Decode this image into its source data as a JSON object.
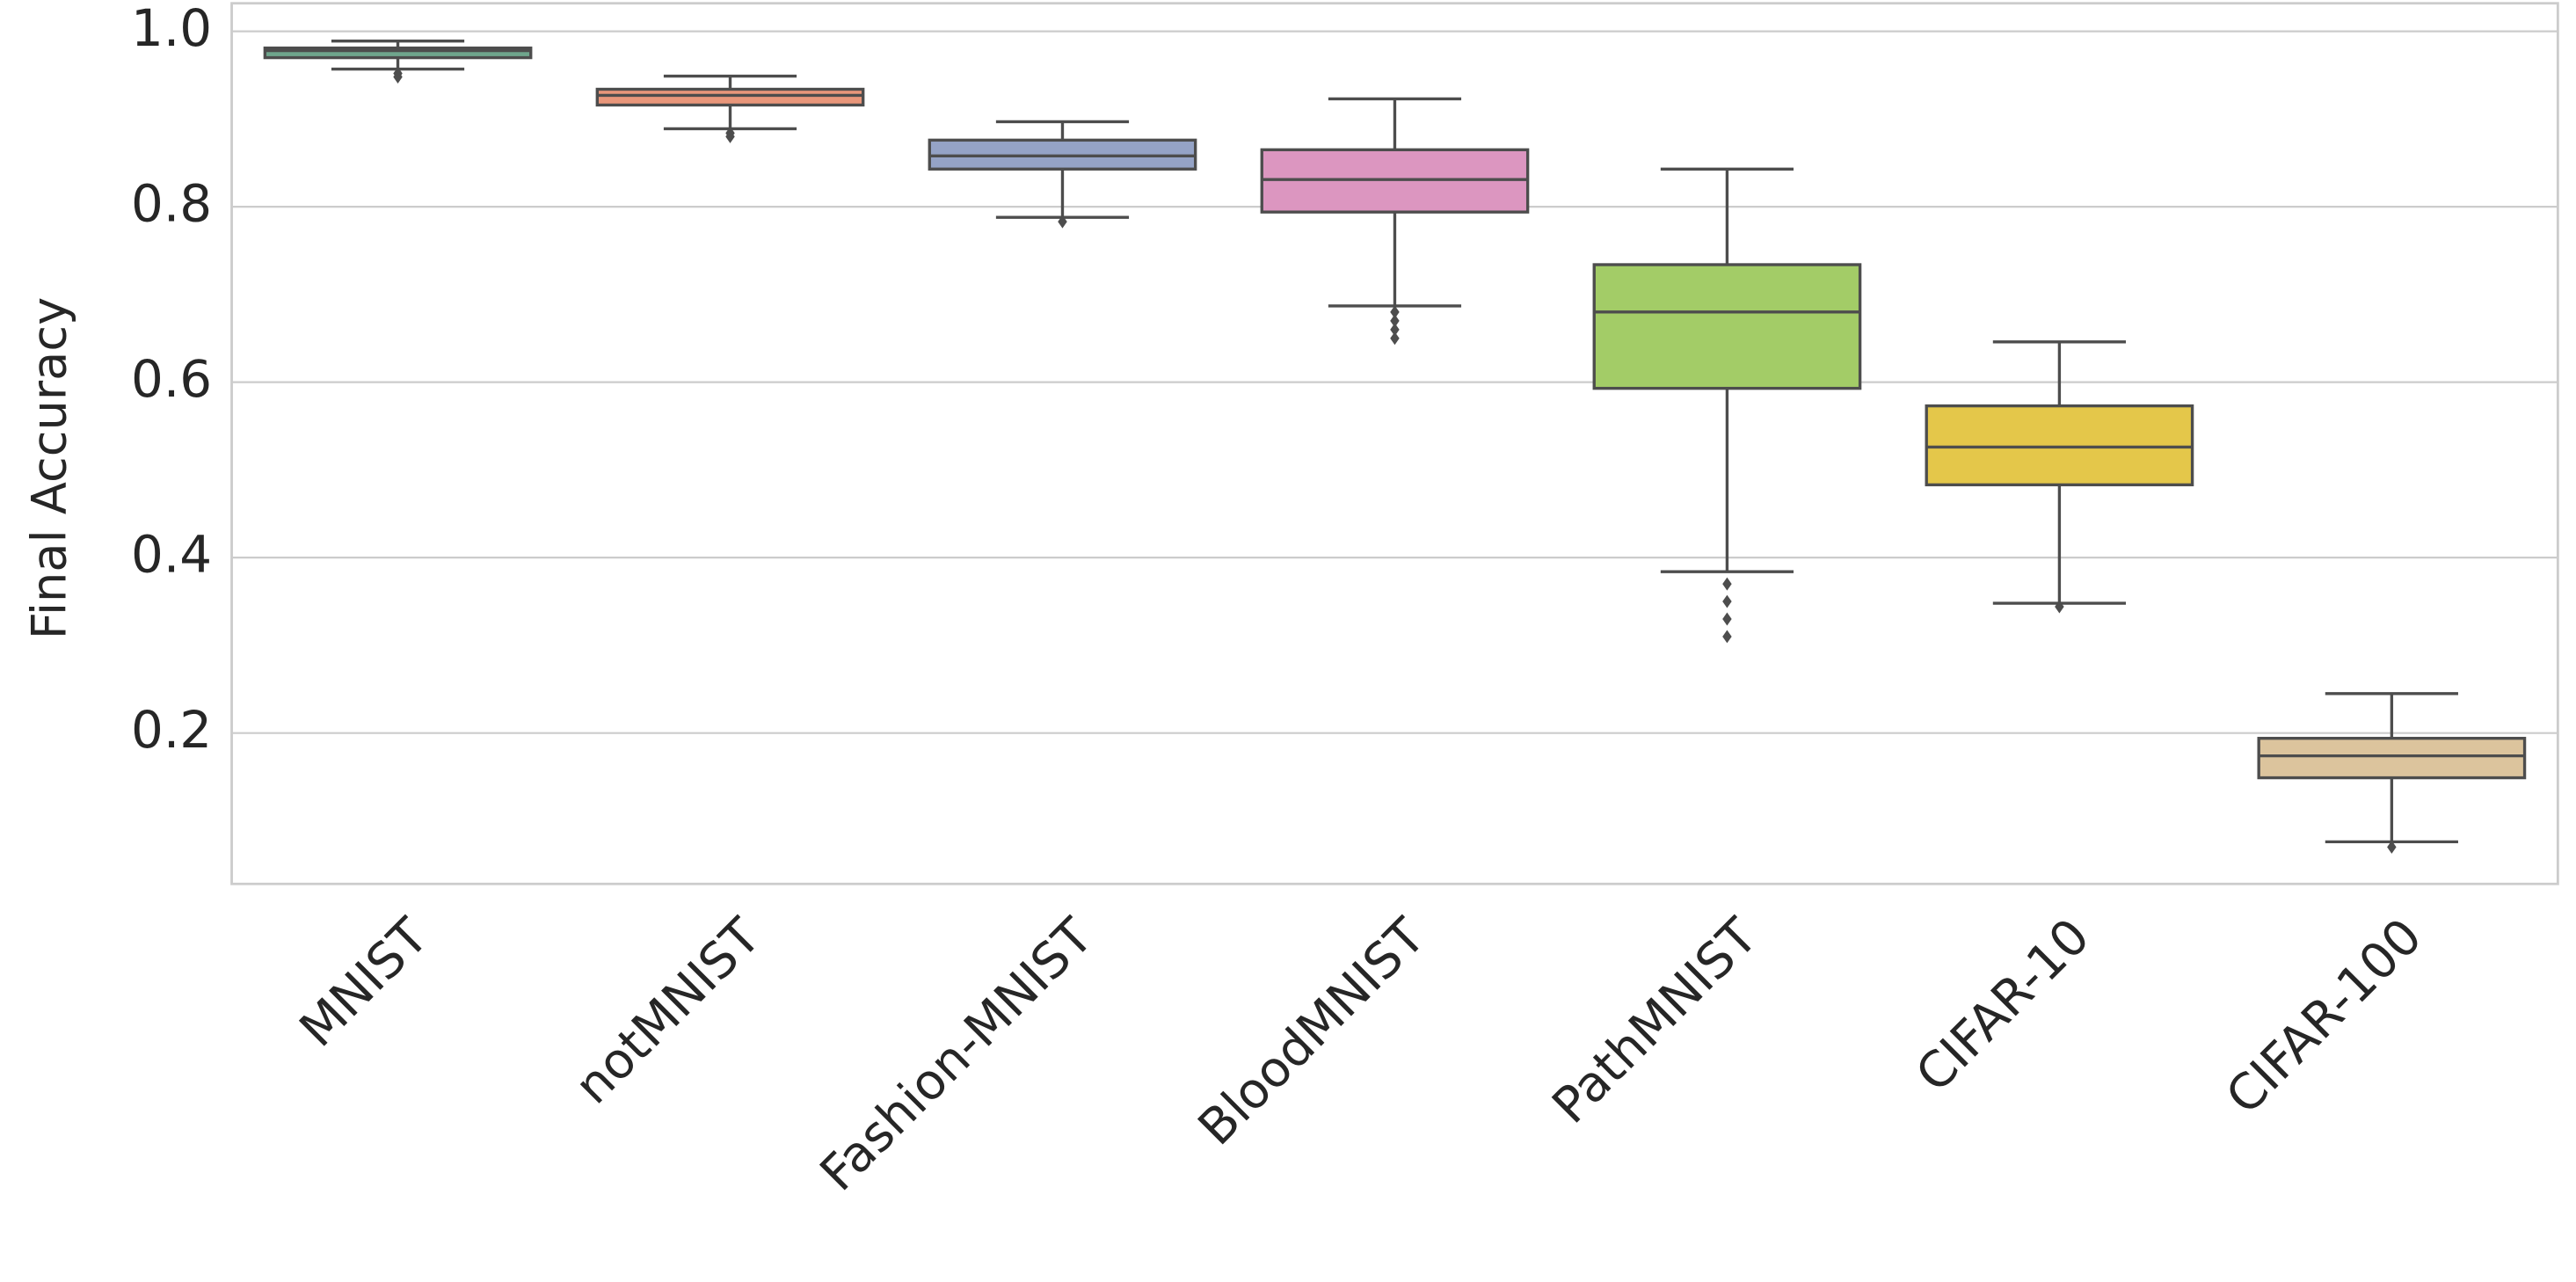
{
  "chart_data": {
    "type": "box",
    "ylabel": "Final Accuracy",
    "categories": [
      "MNIST",
      "notMNIST",
      "Fashion-MNIST",
      "BloodMNIST",
      "PathMNIST",
      "CIFAR-10",
      "CIFAR-100"
    ],
    "colors": [
      "#6fa58c",
      "#e9967a",
      "#95a3c6",
      "#dc96c0",
      "#a3cc67",
      "#e4c74a",
      "#dcc49d"
    ],
    "boxes": [
      {
        "whislo": 0.957,
        "q1": 0.97,
        "med": 0.978,
        "q3": 0.981,
        "whishi": 0.989,
        "fliers": [
          0.952,
          0.948
        ]
      },
      {
        "whislo": 0.889,
        "q1": 0.916,
        "med": 0.927,
        "q3": 0.934,
        "whishi": 0.949,
        "fliers": [
          0.884,
          0.88
        ]
      },
      {
        "whislo": 0.788,
        "q1": 0.843,
        "med": 0.858,
        "q3": 0.876,
        "whishi": 0.897,
        "fliers": [
          0.783
        ]
      },
      {
        "whislo": 0.687,
        "q1": 0.794,
        "med": 0.831,
        "q3": 0.865,
        "whishi": 0.923,
        "fliers": [
          0.68,
          0.67,
          0.66,
          0.65
        ]
      },
      {
        "whislo": 0.384,
        "q1": 0.593,
        "med": 0.68,
        "q3": 0.734,
        "whishi": 0.843,
        "fliers": [
          0.37,
          0.35,
          0.33,
          0.31
        ]
      },
      {
        "whislo": 0.348,
        "q1": 0.483,
        "med": 0.526,
        "q3": 0.573,
        "whishi": 0.646,
        "fliers": [
          0.344
        ]
      },
      {
        "whislo": 0.076,
        "q1": 0.149,
        "med": 0.174,
        "q3": 0.194,
        "whishi": 0.245,
        "fliers": [
          0.07
        ]
      }
    ],
    "ylim": [
      0.028,
      1.032
    ],
    "yticks": [
      0.2,
      0.4,
      0.6,
      0.8,
      {
        "value": 1,
        "label": "1.0"
      }
    ],
    "grid": true
  }
}
